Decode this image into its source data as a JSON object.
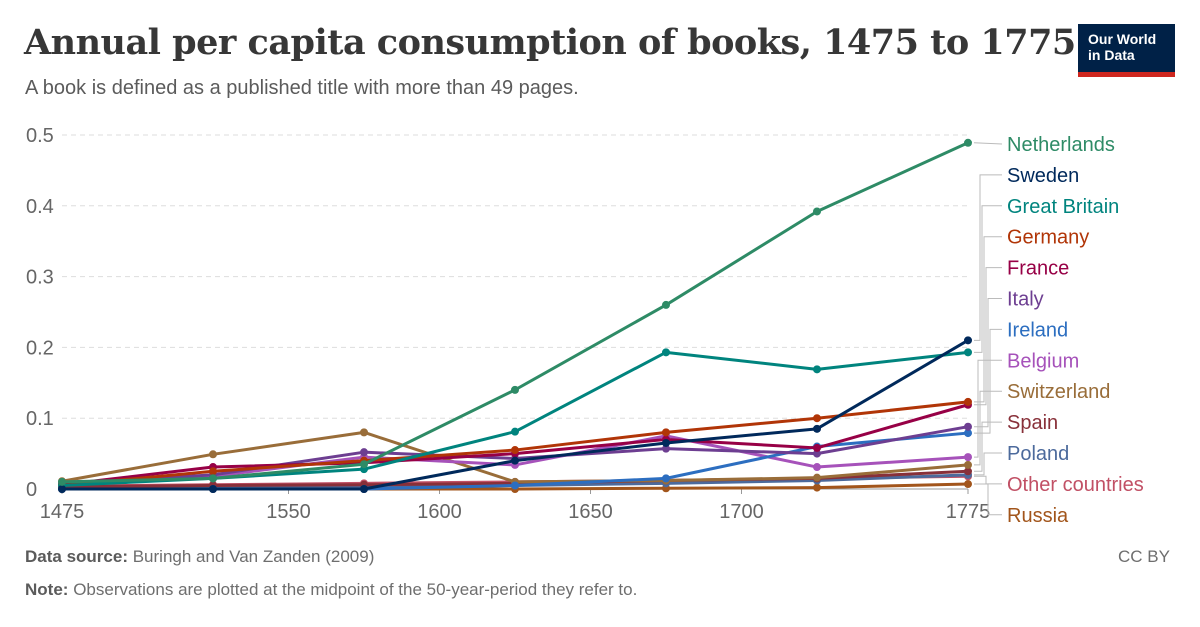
{
  "header": {
    "title": "Annual per capita consumption of books, 1475 to 1775",
    "subtitle": "A book is defined as a published title with more than 49 pages.",
    "logo_line1": "Our World",
    "logo_line2": "in Data"
  },
  "footer": {
    "source_label": "Data source:",
    "source_text": "Buringh and Van Zanden (2009)",
    "note_label": "Note:",
    "note_text": "Observations are plotted at the midpoint of the 50-year-period they refer to.",
    "license": "CC BY"
  },
  "chart_data": {
    "type": "line",
    "title": "Annual per capita consumption of books, 1475 to 1775",
    "xlabel": "",
    "ylabel": "",
    "xlim": [
      1475,
      1775
    ],
    "ylim": [
      0,
      0.5
    ],
    "x_ticks": [
      1475,
      1550,
      1600,
      1650,
      1700,
      1775
    ],
    "y_ticks": [
      0,
      0.1,
      0.2,
      0.3,
      0.4,
      0.5
    ],
    "y_tick_labels": [
      "0",
      "0.1",
      "0.2",
      "0.3",
      "0.4",
      "0.5"
    ],
    "grid": "horizontal dashed",
    "legend": "right (line-end labels)",
    "x": [
      1475,
      1525,
      1575,
      1625,
      1675,
      1725,
      1775
    ],
    "series": [
      {
        "name": "Netherlands",
        "color": "#2e8b66",
        "values": [
          0.01,
          0.015,
          0.035,
          0.14,
          0.26,
          0.392,
          0.489
        ]
      },
      {
        "name": "Sweden",
        "color": "#00295b",
        "values": [
          0.0,
          0.0,
          0.0,
          0.04,
          0.065,
          0.085,
          0.21
        ]
      },
      {
        "name": "Great Britain",
        "color": "#00847e",
        "values": [
          0.005,
          0.015,
          0.028,
          0.081,
          0.193,
          0.169,
          0.193
        ]
      },
      {
        "name": "Germany",
        "color": "#b13507",
        "values": [
          0.005,
          0.025,
          0.04,
          0.055,
          0.08,
          0.1,
          0.123
        ]
      },
      {
        "name": "France",
        "color": "#970046",
        "values": [
          0.006,
          0.031,
          0.037,
          0.05,
          0.07,
          0.058,
          0.119
        ]
      },
      {
        "name": "Italy",
        "color": "#6d3e91",
        "values": [
          0.008,
          0.02,
          0.052,
          0.043,
          0.057,
          0.05,
          0.088
        ]
      },
      {
        "name": "Ireland",
        "color": "#2c6ec0",
        "values": [
          0.0,
          0.0,
          0.0,
          0.005,
          0.015,
          0.06,
          0.079
        ]
      },
      {
        "name": "Belgium",
        "color": "#a652ba",
        "values": [
          0.007,
          0.018,
          0.045,
          0.034,
          0.075,
          0.031,
          0.045
        ]
      },
      {
        "name": "Switzerland",
        "color": "#996d39",
        "values": [
          0.011,
          0.049,
          0.08,
          0.01,
          0.012,
          0.016,
          0.034
        ]
      },
      {
        "name": "Spain",
        "color": "#883039",
        "values": [
          0.003,
          0.005,
          0.006,
          0.008,
          0.012,
          0.015,
          0.025
        ]
      },
      {
        "name": "Poland",
        "color": "#4c6a9c",
        "values": [
          0.0,
          0.001,
          0.003,
          0.005,
          0.008,
          0.012,
          0.02
        ]
      },
      {
        "name": "Other countries",
        "color": "#c15065",
        "values": [
          0.004,
          0.006,
          0.008,
          0.01,
          0.012,
          0.015,
          0.018
        ]
      },
      {
        "name": "Russia",
        "color": "#a2551b",
        "values": [
          0.0,
          0.0,
          0.0,
          0.0,
          0.001,
          0.002,
          0.007
        ]
      }
    ]
  }
}
